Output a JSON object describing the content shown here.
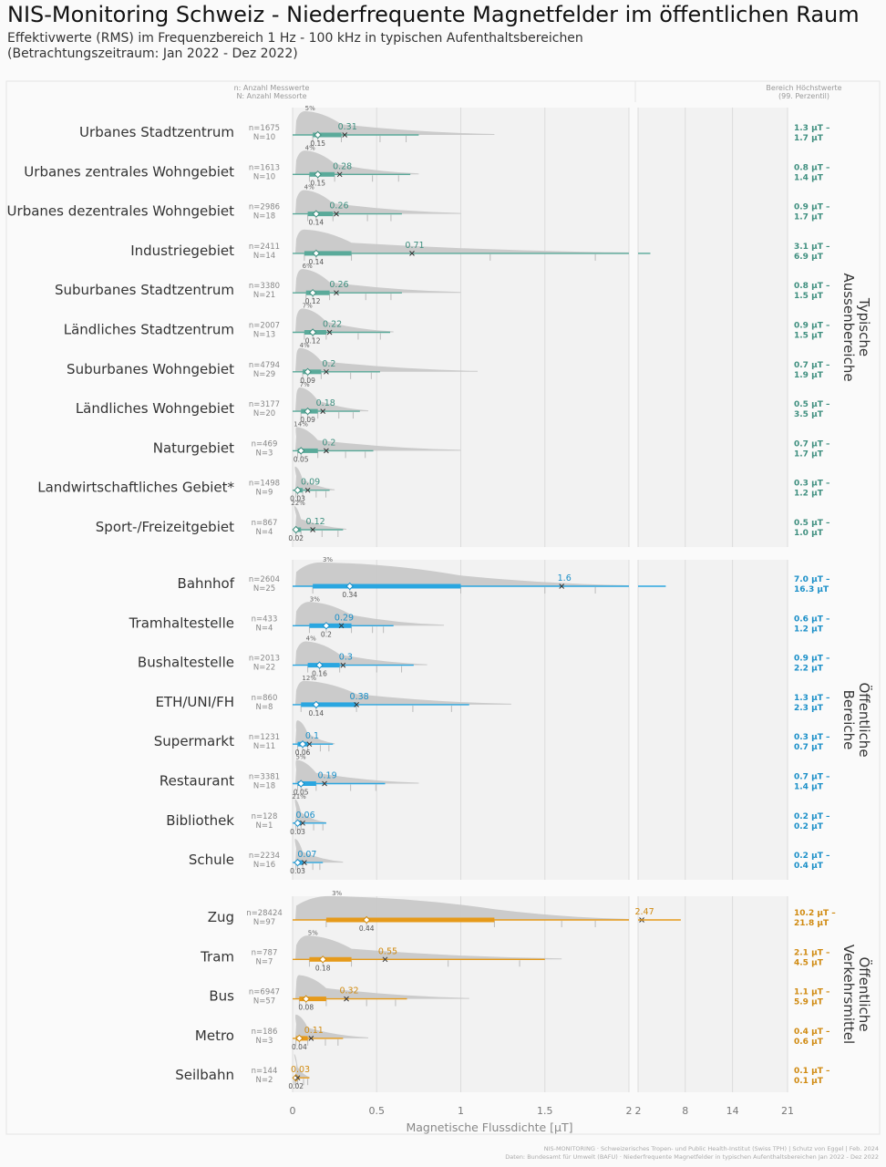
{
  "header": {
    "title": "NIS-Monitoring Schweiz - Niederfrequente Magnetfelder im öffentlichen Raum",
    "subtitle_line1": "Effektivwerte (RMS) im Frequenzbereich 1 Hz - 100 kHz in typischen Aufenthaltsbereichen",
    "subtitle_line2": "(Betrachtungszeitraum: Jan 2022 - Dez 2022)"
  },
  "column_headers": {
    "counts_line1": "n: Anzahl Messwerte",
    "counts_line2": "N: Anzahl Messorte",
    "range_line1": "Bereich Höchstwerte",
    "range_line2": "(99. Perzentil)"
  },
  "caption": {
    "line1": "NIS-MONITORING · Schweizerisches Tropen- und Public Health-Institut (Swiss TPH) | Schutz von Eggel | Feb. 2024",
    "line2": "Daten: Bundesamt für Umwelt (BAFU) · Niederfrequente Magnetfelder in typischen Aufenthaltsbereichen Jan 2022 - Dez 2022"
  },
  "colors": {
    "aussen": "#5aaa9a",
    "aussen_text": "#3f8f7f",
    "oeffentlich": "#2aa6e0",
    "oeffentlich_text": "#1a8fc8",
    "verkehr": "#e69a1a",
    "verkehr_text": "#d08a10",
    "density": "#c8c8c8",
    "panel": "#f2f2f2"
  },
  "chart_data": {
    "type": "ridgeline-boxplot",
    "xlabel": "Magnetische Flussdichte [µT]",
    "x_ticks_left": [
      "0",
      "0.5",
      "1",
      "1.5",
      "2"
    ],
    "x_ticks_right": [
      "2",
      "8",
      "14",
      "21"
    ],
    "xlim_left": [
      0,
      2
    ],
    "xlim_right": [
      2,
      21
    ],
    "groups": [
      {
        "name": "Typische Aussenbereiche",
        "color_key": "aussen",
        "rows": [
          {
            "label": "Urbanes Stadtzentrum",
            "n": "n=1675",
            "N": "N=10",
            "mean": 0.31,
            "mean_label": "0.31",
            "median": 0.15,
            "median_label": "0.15",
            "pct_label": "5%",
            "q1": 0.12,
            "q3": 0.29,
            "whisker_hi": 0.75,
            "tail": 1.2,
            "p99_low": "1.3 µT –",
            "p99_high": "1.7 µT"
          },
          {
            "label": "Urbanes zentrales Wohngebiet",
            "n": "n=1613",
            "N": "N=10",
            "mean": 0.28,
            "mean_label": "0.28",
            "median": 0.15,
            "median_label": "0.15",
            "pct_label": "4%",
            "q1": 0.1,
            "q3": 0.25,
            "whisker_hi": 0.7,
            "tail": 0.75,
            "p99_low": "0.8 µT –",
            "p99_high": "1.4 µT"
          },
          {
            "label": "Urbanes dezentrales Wohngebiet",
            "n": "n=2986",
            "N": "N=18",
            "mean": 0.26,
            "mean_label": "0.26",
            "median": 0.14,
            "median_label": "0.14",
            "pct_label": "4%",
            "q1": 0.09,
            "q3": 0.24,
            "whisker_hi": 0.65,
            "tail": 1.0,
            "p99_low": "0.9 µT –",
            "p99_high": "1.7 µT"
          },
          {
            "label": "Industriegebiet",
            "n": "n=2411",
            "N": "N=14",
            "mean": 0.71,
            "mean_label": "0.71",
            "median": 0.14,
            "median_label": "0.14",
            "pct_label": "",
            "q1": 0.07,
            "q3": 0.35,
            "whisker_hi": 2.0,
            "tail": 2.0,
            "p99_low": "3.1 µT –",
            "p99_high": "6.9 µT"
          },
          {
            "label": "Suburbanes Stadtzentrum",
            "n": "n=3380",
            "N": "N=21",
            "mean": 0.26,
            "mean_label": "0.26",
            "median": 0.12,
            "median_label": "0.12",
            "pct_label": "6%",
            "q1": 0.08,
            "q3": 0.22,
            "whisker_hi": 0.65,
            "tail": 1.0,
            "p99_low": "0.8 µT –",
            "p99_high": "1.5 µT"
          },
          {
            "label": "Ländliches Stadtzentrum",
            "n": "n=2007",
            "N": "N=13",
            "mean": 0.22,
            "mean_label": "0.22",
            "median": 0.12,
            "median_label": "0.12",
            "pct_label": "7%",
            "q1": 0.07,
            "q3": 0.2,
            "whisker_hi": 0.58,
            "tail": 0.6,
            "p99_low": "0.9 µT –",
            "p99_high": "1.5 µT"
          },
          {
            "label": "Suburbanes Wohngebiet",
            "n": "n=4794",
            "N": "N=29",
            "mean": 0.2,
            "mean_label": "0.2",
            "median": 0.09,
            "median_label": "0.09",
            "pct_label": "4%",
            "q1": 0.06,
            "q3": 0.17,
            "whisker_hi": 0.52,
            "tail": 1.1,
            "p99_low": "0.7 µT –",
            "p99_high": "1.9 µT"
          },
          {
            "label": "Ländliches Wohngebiet",
            "n": "n=3177",
            "N": "N=20",
            "mean": 0.18,
            "mean_label": "0.18",
            "median": 0.09,
            "median_label": "0.09",
            "pct_label": "7%",
            "q1": 0.05,
            "q3": 0.15,
            "whisker_hi": 0.4,
            "tail": 0.45,
            "p99_low": "0.5 µT –",
            "p99_high": "3.5 µT"
          },
          {
            "label": "Naturgebiet",
            "n": "n=469",
            "N": "N=3",
            "mean": 0.2,
            "mean_label": "0.2",
            "median": 0.05,
            "median_label": "0.05",
            "pct_label": "14%",
            "q1": 0.03,
            "q3": 0.15,
            "whisker_hi": 0.48,
            "tail": 1.0,
            "p99_low": "0.7 µT –",
            "p99_high": "1.7 µT"
          },
          {
            "label": "Landwirtschaftliches Gebiet*",
            "n": "n=1498",
            "N": "N=9",
            "mean": 0.09,
            "mean_label": "0.09",
            "median": 0.03,
            "median_label": "0.03",
            "pct_label": "",
            "q1": 0.02,
            "q3": 0.06,
            "whisker_hi": 0.22,
            "tail": 0.25,
            "p99_low": "0.3 µT –",
            "p99_high": "1.2 µT"
          },
          {
            "label": "Sport-/Freizeitgebiet",
            "n": "n=867",
            "N": "N=4",
            "mean": 0.12,
            "mean_label": "0.12",
            "median": 0.02,
            "median_label": "0.02",
            "pct_label": "22%",
            "q1": 0.02,
            "q3": 0.05,
            "whisker_hi": 0.3,
            "tail": 0.32,
            "p99_low": "0.5 µT –",
            "p99_high": "1.0 µT"
          }
        ]
      },
      {
        "name": "Öffentliche Bereiche",
        "color_key": "oeffentlich",
        "rows": [
          {
            "label": "Bahnhof",
            "n": "n=2604",
            "N": "N=25",
            "mean": 1.6,
            "mean_label": "1.6",
            "median": 0.34,
            "median_label": "0.34",
            "pct_label": "3%",
            "q1": 0.12,
            "q3": 1.0,
            "whisker_hi": 2.0,
            "tail": 2.0,
            "p99_low": "7.0 µT –",
            "p99_high": "16.3 µT"
          },
          {
            "label": "Tramhaltestelle",
            "n": "n=433",
            "N": "N=4",
            "mean": 0.29,
            "mean_label": "0.29",
            "median": 0.2,
            "median_label": "0.2",
            "pct_label": "3%",
            "q1": 0.1,
            "q3": 0.35,
            "whisker_hi": 0.6,
            "tail": 0.9,
            "p99_low": "0.6 µT –",
            "p99_high": "1.2 µT"
          },
          {
            "label": "Bushaltestelle",
            "n": "n=2013",
            "N": "N=22",
            "mean": 0.3,
            "mean_label": "0.3",
            "median": 0.16,
            "median_label": "0.16",
            "pct_label": "4%",
            "q1": 0.09,
            "q3": 0.28,
            "whisker_hi": 0.72,
            "tail": 0.8,
            "p99_low": "0.9 µT –",
            "p99_high": "2.2 µT"
          },
          {
            "label": "ETH/UNI/FH",
            "n": "n=860",
            "N": "N=8",
            "mean": 0.38,
            "mean_label": "0.38",
            "median": 0.14,
            "median_label": "0.14",
            "pct_label": "12%",
            "q1": 0.05,
            "q3": 0.38,
            "whisker_hi": 1.05,
            "tail": 1.3,
            "p99_low": "1.3 µT –",
            "p99_high": "2.3 µT"
          },
          {
            "label": "Supermarkt",
            "n": "n=1231",
            "N": "N=11",
            "mean": 0.1,
            "mean_label": "0.1",
            "median": 0.06,
            "median_label": "0.06",
            "pct_label": "",
            "q1": 0.03,
            "q3": 0.09,
            "whisker_hi": 0.24,
            "tail": 0.25,
            "p99_low": "0.3 µT –",
            "p99_high": "0.7 µT"
          },
          {
            "label": "Restaurant",
            "n": "n=3381",
            "N": "N=18",
            "mean": 0.19,
            "mean_label": "0.19",
            "median": 0.05,
            "median_label": "0.05",
            "pct_label": "5%",
            "q1": 0.03,
            "q3": 0.14,
            "whisker_hi": 0.55,
            "tail": 0.75,
            "p99_low": "0.7 µT –",
            "p99_high": "1.4 µT"
          },
          {
            "label": "Bibliothek",
            "n": "n=128",
            "N": "N=1",
            "mean": 0.06,
            "mean_label": "0.06",
            "median": 0.03,
            "median_label": "0.03",
            "pct_label": "21%",
            "q1": 0.02,
            "q3": 0.05,
            "whisker_hi": 0.2,
            "tail": 0.2,
            "p99_low": "0.2 µT –",
            "p99_high": "0.2 µT"
          },
          {
            "label": "Schule",
            "n": "n=2234",
            "N": "N=16",
            "mean": 0.07,
            "mean_label": "0.07",
            "median": 0.03,
            "median_label": "0.03",
            "pct_label": "",
            "q1": 0.02,
            "q3": 0.06,
            "whisker_hi": 0.18,
            "tail": 0.3,
            "p99_low": "0.2 µT –",
            "p99_high": "0.4 µT"
          }
        ]
      },
      {
        "name": "Öffentliche Verkehrsmittel",
        "color_key": "verkehr",
        "rows": [
          {
            "label": "Zug",
            "n": "n=28424",
            "N": "N=97",
            "mean": 2.47,
            "mean_label": "2.47",
            "median": 0.44,
            "median_label": "0.44",
            "pct_label": "3%",
            "q1": 0.2,
            "q3": 1.2,
            "whisker_hi": 2.0,
            "tail": 2.0,
            "p99_low": "10.2 µT –",
            "p99_high": "21.8 µT"
          },
          {
            "label": "Tram",
            "n": "n=787",
            "N": "N=7",
            "mean": 0.55,
            "mean_label": "0.55",
            "median": 0.18,
            "median_label": "0.18",
            "pct_label": "5%",
            "q1": 0.1,
            "q3": 0.35,
            "whisker_hi": 1.5,
            "tail": 1.6,
            "p99_low": "2.1 µT –",
            "p99_high": "4.5 µT"
          },
          {
            "label": "Bus",
            "n": "n=6947",
            "N": "N=57",
            "mean": 0.32,
            "mean_label": "0.32",
            "median": 0.08,
            "median_label": "0.08",
            "pct_label": "",
            "q1": 0.04,
            "q3": 0.2,
            "whisker_hi": 0.68,
            "tail": 1.05,
            "p99_low": "1.1 µT –",
            "p99_high": "5.9 µT"
          },
          {
            "label": "Metro",
            "n": "n=186",
            "N": "N=3",
            "mean": 0.11,
            "mean_label": "0.11",
            "median": 0.04,
            "median_label": "0.04",
            "pct_label": "",
            "q1": 0.02,
            "q3": 0.09,
            "whisker_hi": 0.3,
            "tail": 0.45,
            "p99_low": "0.4 µT –",
            "p99_high": "0.6 µT"
          },
          {
            "label": "Seilbahn",
            "n": "n=144",
            "N": "N=2",
            "mean": 0.03,
            "mean_label": "0.03",
            "median": 0.02,
            "median_label": "0.02",
            "pct_label": "",
            "q1": 0.01,
            "q3": 0.03,
            "whisker_hi": 0.1,
            "tail": 0.1,
            "p99_low": "0.1 µT –",
            "p99_high": "0.1 µT"
          }
        ]
      }
    ]
  }
}
